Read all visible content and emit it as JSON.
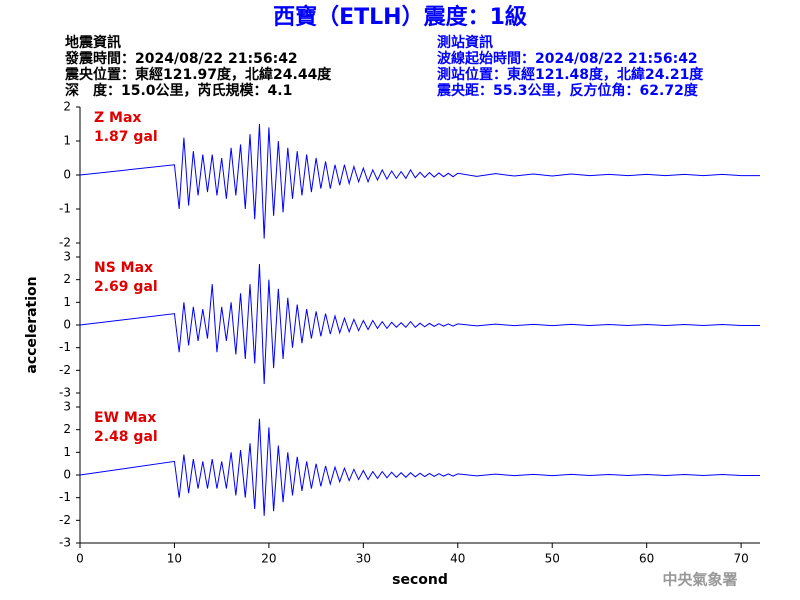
{
  "header": {
    "title": "西寶（ETLH）震度：1級",
    "left_info": [
      "地震資訊",
      "發震時間：2024/08/22 21:56:42",
      "震央位置：東經121.97度，北緯24.44度",
      "深　度：15.0公里，芮氏規模：4.1"
    ],
    "right_info": [
      "測站資訊",
      "波線起始時間：2024/08/22 21:56:42",
      "測站位置：東經121.48度，北緯24.21度",
      "震央距：55.3公里，反方位角：62.72度"
    ],
    "footer": "中央氣象署"
  },
  "chart_data": [
    {
      "type": "line",
      "label": "Z Max",
      "max_label": "1.87 gal",
      "x": [
        0,
        10,
        10.5,
        11,
        11.5,
        12,
        12.5,
        13,
        13.5,
        14,
        14.5,
        15,
        15.5,
        16,
        16.5,
        17,
        17.5,
        18,
        18.5,
        19,
        19.5,
        20,
        20.5,
        21,
        21.5,
        22,
        22.5,
        23,
        23.5,
        24,
        24.5,
        25,
        25.5,
        26,
        26.5,
        27,
        27.5,
        28,
        28.5,
        29,
        29.5,
        30,
        30.5,
        31,
        31.5,
        32,
        32.5,
        33,
        33.5,
        34,
        34.5,
        35,
        35.5,
        36,
        36.5,
        37,
        37.5,
        38,
        38.5,
        39,
        39.5,
        40,
        42,
        44,
        46,
        48,
        50,
        52,
        54,
        56,
        58,
        60,
        62,
        64,
        66,
        68,
        70
      ],
      "series": [
        {
          "color": "#0000ff",
          "values": [
            0,
            0.3,
            -1.0,
            1.1,
            -0.9,
            0.7,
            -0.6,
            0.6,
            -0.5,
            0.6,
            -0.6,
            0.5,
            -0.7,
            0.8,
            -0.6,
            0.9,
            -1.0,
            1.2,
            -1.3,
            1.5,
            -1.87,
            1.4,
            -1.2,
            1.0,
            -1.1,
            0.8,
            -0.7,
            0.7,
            -0.6,
            0.6,
            -0.5,
            0.5,
            -0.4,
            0.4,
            -0.4,
            0.3,
            -0.3,
            0.3,
            -0.25,
            0.25,
            -0.2,
            0.2,
            -0.2,
            0.15,
            -0.15,
            0.15,
            -0.12,
            0.12,
            -0.1,
            0.1,
            -0.1,
            0.15,
            -0.08,
            0.08,
            -0.07,
            0.07,
            -0.06,
            0.06,
            -0.05,
            0.05,
            -0.05,
            0.05,
            -0.04,
            0.04,
            -0.03,
            0.03,
            -0.03,
            0.03,
            -0.02,
            0.02,
            -0.02,
            0.02,
            -0.02,
            0.02,
            -0.02,
            0.02,
            -0.02
          ]
        }
      ],
      "xlim": [
        0,
        72
      ],
      "ylim": [
        -2,
        2
      ],
      "yticks": [
        -2,
        -1,
        0,
        1,
        2
      ]
    },
    {
      "type": "line",
      "label": "NS Max",
      "max_label": "2.69 gal",
      "ylabel": "acceleration",
      "x": [
        0,
        10,
        10.5,
        11,
        11.5,
        12,
        12.5,
        13,
        13.5,
        14,
        14.5,
        15,
        15.5,
        16,
        16.5,
        17,
        17.5,
        18,
        18.5,
        19,
        19.5,
        20,
        20.5,
        21,
        21.5,
        22,
        22.5,
        23,
        23.5,
        24,
        24.5,
        25,
        25.5,
        26,
        26.5,
        27,
        27.5,
        28,
        28.5,
        29,
        29.5,
        30,
        30.5,
        31,
        31.5,
        32,
        32.5,
        33,
        33.5,
        34,
        34.5,
        35,
        35.5,
        36,
        36.5,
        37,
        37.5,
        38,
        38.5,
        39,
        39.5,
        40,
        42,
        44,
        46,
        48,
        50,
        52,
        54,
        56,
        58,
        60,
        62,
        64,
        66,
        68,
        70
      ],
      "series": [
        {
          "color": "#0000ff",
          "values": [
            0,
            0.5,
            -1.2,
            1.0,
            -0.9,
            0.8,
            -0.7,
            0.7,
            -0.6,
            1.8,
            -1.2,
            0.8,
            -0.7,
            1.0,
            -1.3,
            1.4,
            -1.5,
            1.8,
            -1.7,
            2.69,
            -2.6,
            2.0,
            -1.9,
            1.6,
            -1.5,
            1.2,
            -1.0,
            0.9,
            -0.8,
            0.7,
            -0.6,
            0.6,
            -0.5,
            0.5,
            -0.4,
            0.4,
            -0.35,
            0.3,
            -0.3,
            0.25,
            -0.25,
            0.2,
            -0.2,
            0.2,
            -0.15,
            0.15,
            -0.15,
            0.12,
            -0.1,
            0.1,
            -0.1,
            0.15,
            -0.1,
            0.08,
            -0.08,
            0.07,
            -0.06,
            0.06,
            -0.05,
            0.05,
            -0.05,
            0.05,
            -0.04,
            0.04,
            -0.03,
            0.03,
            -0.03,
            0.03,
            -0.02,
            0.02,
            -0.02,
            0.02,
            -0.02,
            0.02,
            -0.02,
            0.02,
            -0.02
          ]
        }
      ],
      "xlim": [
        0,
        72
      ],
      "ylim": [
        -3,
        3
      ],
      "yticks": [
        -3,
        -2,
        -1,
        0,
        1,
        2,
        3
      ]
    },
    {
      "type": "line",
      "label": "EW Max",
      "max_label": "2.48 gal",
      "xlabel": "second",
      "x": [
        0,
        10,
        10.5,
        11,
        11.5,
        12,
        12.5,
        13,
        13.5,
        14,
        14.5,
        15,
        15.5,
        16,
        16.5,
        17,
        17.5,
        18,
        18.5,
        19,
        19.5,
        20,
        20.5,
        21,
        21.5,
        22,
        22.5,
        23,
        23.5,
        24,
        24.5,
        25,
        25.5,
        26,
        26.5,
        27,
        27.5,
        28,
        28.5,
        29,
        29.5,
        30,
        30.5,
        31,
        31.5,
        32,
        32.5,
        33,
        33.5,
        34,
        34.5,
        35,
        35.5,
        36,
        36.5,
        37,
        37.5,
        38,
        38.5,
        39,
        39.5,
        40,
        42,
        44,
        46,
        48,
        50,
        52,
        54,
        56,
        58,
        60,
        62,
        64,
        66,
        68,
        70
      ],
      "series": [
        {
          "color": "#0000ff",
          "values": [
            0,
            0.6,
            -1.0,
            0.9,
            -0.8,
            0.7,
            -0.6,
            0.6,
            -0.6,
            0.7,
            -0.6,
            0.6,
            -0.6,
            1.0,
            -0.9,
            1.1,
            -1.0,
            1.4,
            -1.5,
            2.48,
            -1.8,
            2.1,
            -1.6,
            1.3,
            -1.2,
            1.0,
            -0.9,
            0.8,
            -0.7,
            0.6,
            -0.6,
            0.5,
            -0.5,
            0.4,
            -0.4,
            0.35,
            -0.3,
            0.3,
            -0.25,
            0.25,
            -0.2,
            0.2,
            -0.2,
            0.15,
            -0.15,
            0.15,
            -0.12,
            0.12,
            -0.1,
            0.1,
            -0.1,
            0.1,
            -0.08,
            0.08,
            -0.07,
            0.07,
            -0.06,
            0.06,
            -0.05,
            0.05,
            -0.05,
            0.05,
            -0.04,
            0.04,
            -0.03,
            0.03,
            -0.03,
            0.03,
            -0.02,
            0.02,
            -0.02,
            0.02,
            -0.02,
            0.02,
            -0.02,
            0.02,
            -0.02
          ]
        }
      ],
      "xlim": [
        0,
        72
      ],
      "ylim": [
        -3,
        3
      ],
      "yticks": [
        -3,
        -2,
        -1,
        0,
        1,
        2,
        3
      ],
      "xticks": [
        0,
        10,
        20,
        30,
        40,
        50,
        60,
        70
      ]
    }
  ]
}
